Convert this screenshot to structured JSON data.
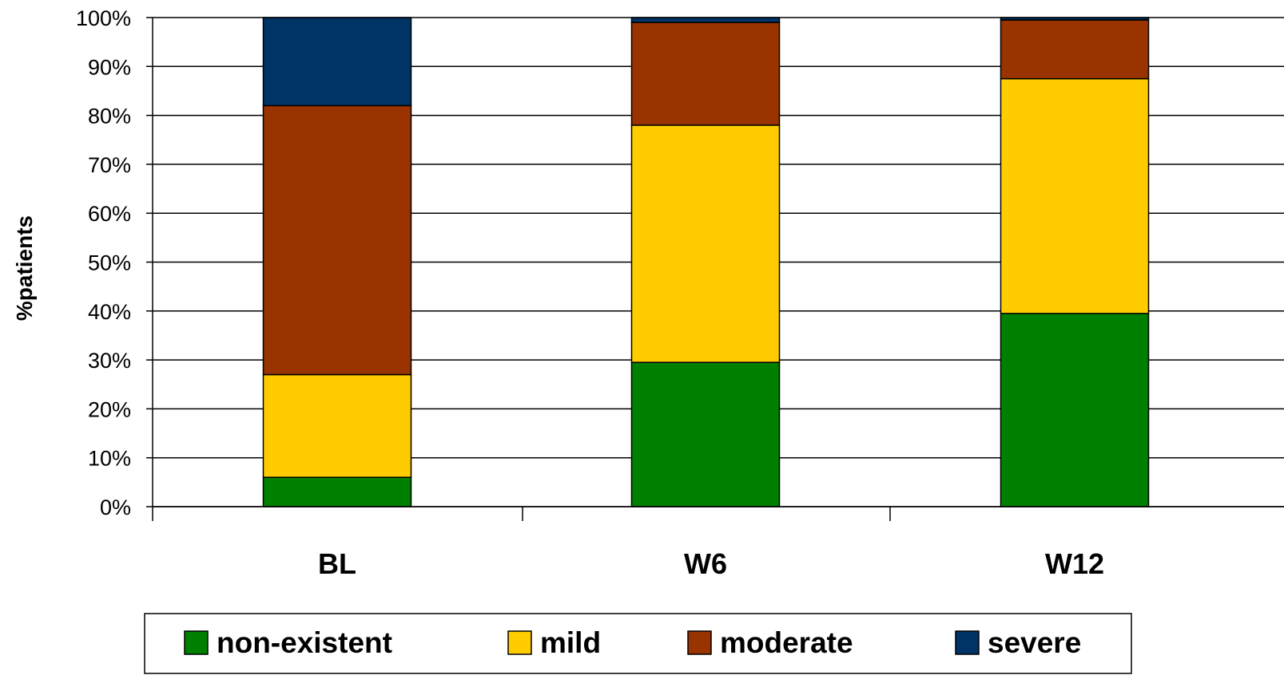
{
  "chart_data": {
    "type": "bar",
    "stacked": true,
    "categories": [
      "BL",
      "W6",
      "W12"
    ],
    "series": [
      {
        "name": "non-existent",
        "color": "#008000",
        "values": [
          6,
          29.5,
          39.5
        ]
      },
      {
        "name": "mild",
        "color": "#FFCC00",
        "values": [
          21,
          48.5,
          48
        ]
      },
      {
        "name": "moderate",
        "color": "#993300",
        "values": [
          55,
          21,
          12
        ]
      },
      {
        "name": "severe",
        "color": "#003366",
        "values": [
          18,
          1,
          0.5
        ]
      }
    ],
    "ylabel": "%patients",
    "xlabel": "",
    "ylim": [
      0,
      100
    ],
    "yticks": [
      "0%",
      "10%",
      "20%",
      "30%",
      "40%",
      "50%",
      "60%",
      "70%",
      "80%",
      "90%",
      "100%"
    ],
    "grid": true,
    "legend_position": "bottom"
  }
}
